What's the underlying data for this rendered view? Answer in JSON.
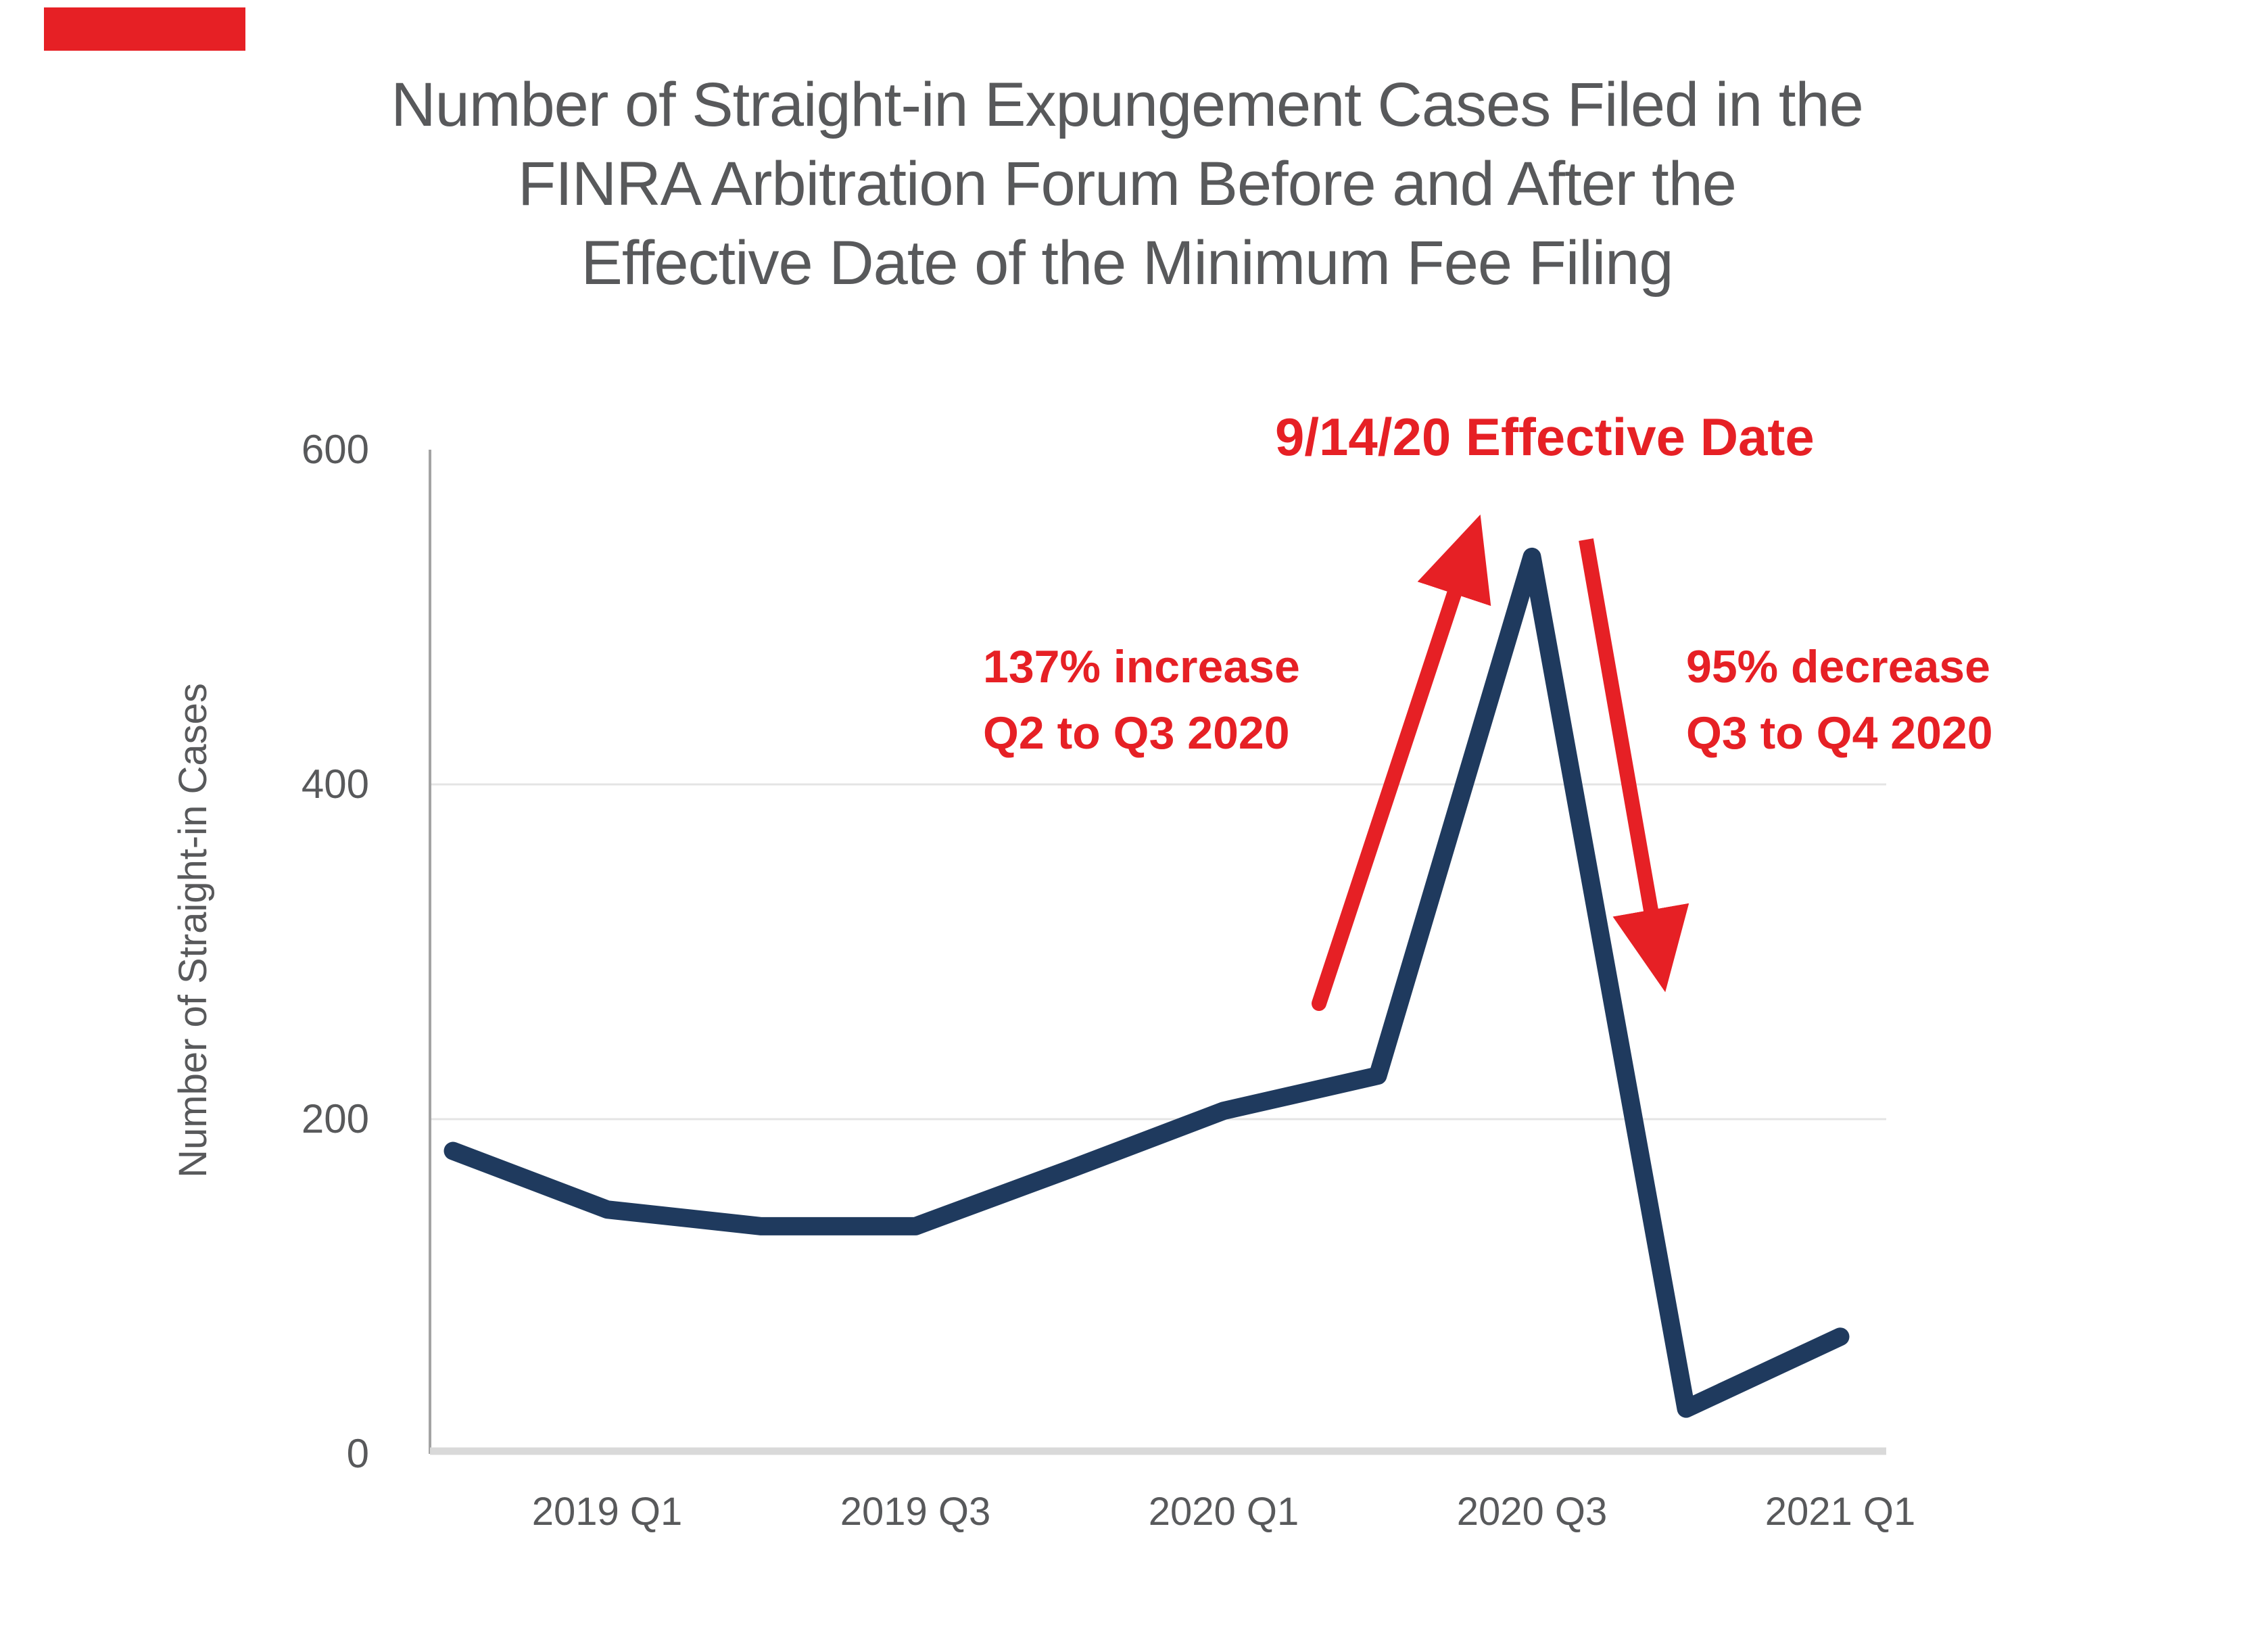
{
  "title": {
    "line1": "Number of Straight-in Expungement Cases Filed in the",
    "line2": "FINRA Arbitration Forum Before and After the",
    "line3": "Effective Date of the Minimum Fee Filing"
  },
  "y_axis": {
    "title": "Number of Straight-in Cases",
    "ticks": [
      "600",
      "400",
      "200",
      "0"
    ]
  },
  "x_axis": {
    "ticks": [
      "2019 Q1",
      "2019 Q3",
      "2020 Q1",
      "2020 Q3",
      "2021 Q1"
    ]
  },
  "annotations": {
    "effective_date": "9/14/20 Effective Date",
    "increase_line1": "137% increase",
    "increase_line2": "Q2 to Q3 2020",
    "decrease_line1": "95% decrease",
    "decrease_line2": "Q3 to Q4 2020"
  },
  "colors": {
    "line_navy": "#1f3a5e",
    "annotation_red": "#e62025",
    "text_gray": "#58595b",
    "axis_line_gray": "#a3a3a3",
    "baseline_gray": "#d9d9d9",
    "gridline_gray": "#e4e4e4"
  },
  "chart_data": {
    "type": "line",
    "title": "Number of Straight-in Expungement Cases Filed in the FINRA Arbitration Forum Before and After the Effective Date of the Minimum Fee Filing",
    "xlabel": "",
    "ylabel": "Number of Straight-in Cases",
    "categories": [
      "2018 Q4",
      "2019 Q1",
      "2019 Q2",
      "2019 Q3",
      "2019 Q4",
      "2020 Q1",
      "2020 Q2",
      "2020 Q3",
      "2020 Q4",
      "2021 Q1"
    ],
    "values": [
      181,
      146,
      136,
      136,
      170,
      205,
      226,
      536,
      27,
      70
    ],
    "ylim": [
      0,
      600
    ],
    "y_ticks": [
      0,
      200,
      400,
      600
    ],
    "gridlines_at": [
      200,
      400
    ],
    "grid": "horizontal-only",
    "legend": "none",
    "x_tick_labels": [
      "2019 Q1",
      "2019 Q3",
      "2020 Q1",
      "2020 Q3",
      "2021 Q1"
    ],
    "x_tick_indices": [
      1,
      3,
      5,
      7,
      9
    ],
    "annotations": [
      {
        "text": "9/14/20 Effective Date",
        "color": "#e62025"
      },
      {
        "text": "137% increase Q2 to Q3 2020",
        "color": "#e62025",
        "arrow": "up"
      },
      {
        "text": "95% decrease Q3 to Q4 2020",
        "color": "#e62025",
        "arrow": "down"
      }
    ]
  }
}
